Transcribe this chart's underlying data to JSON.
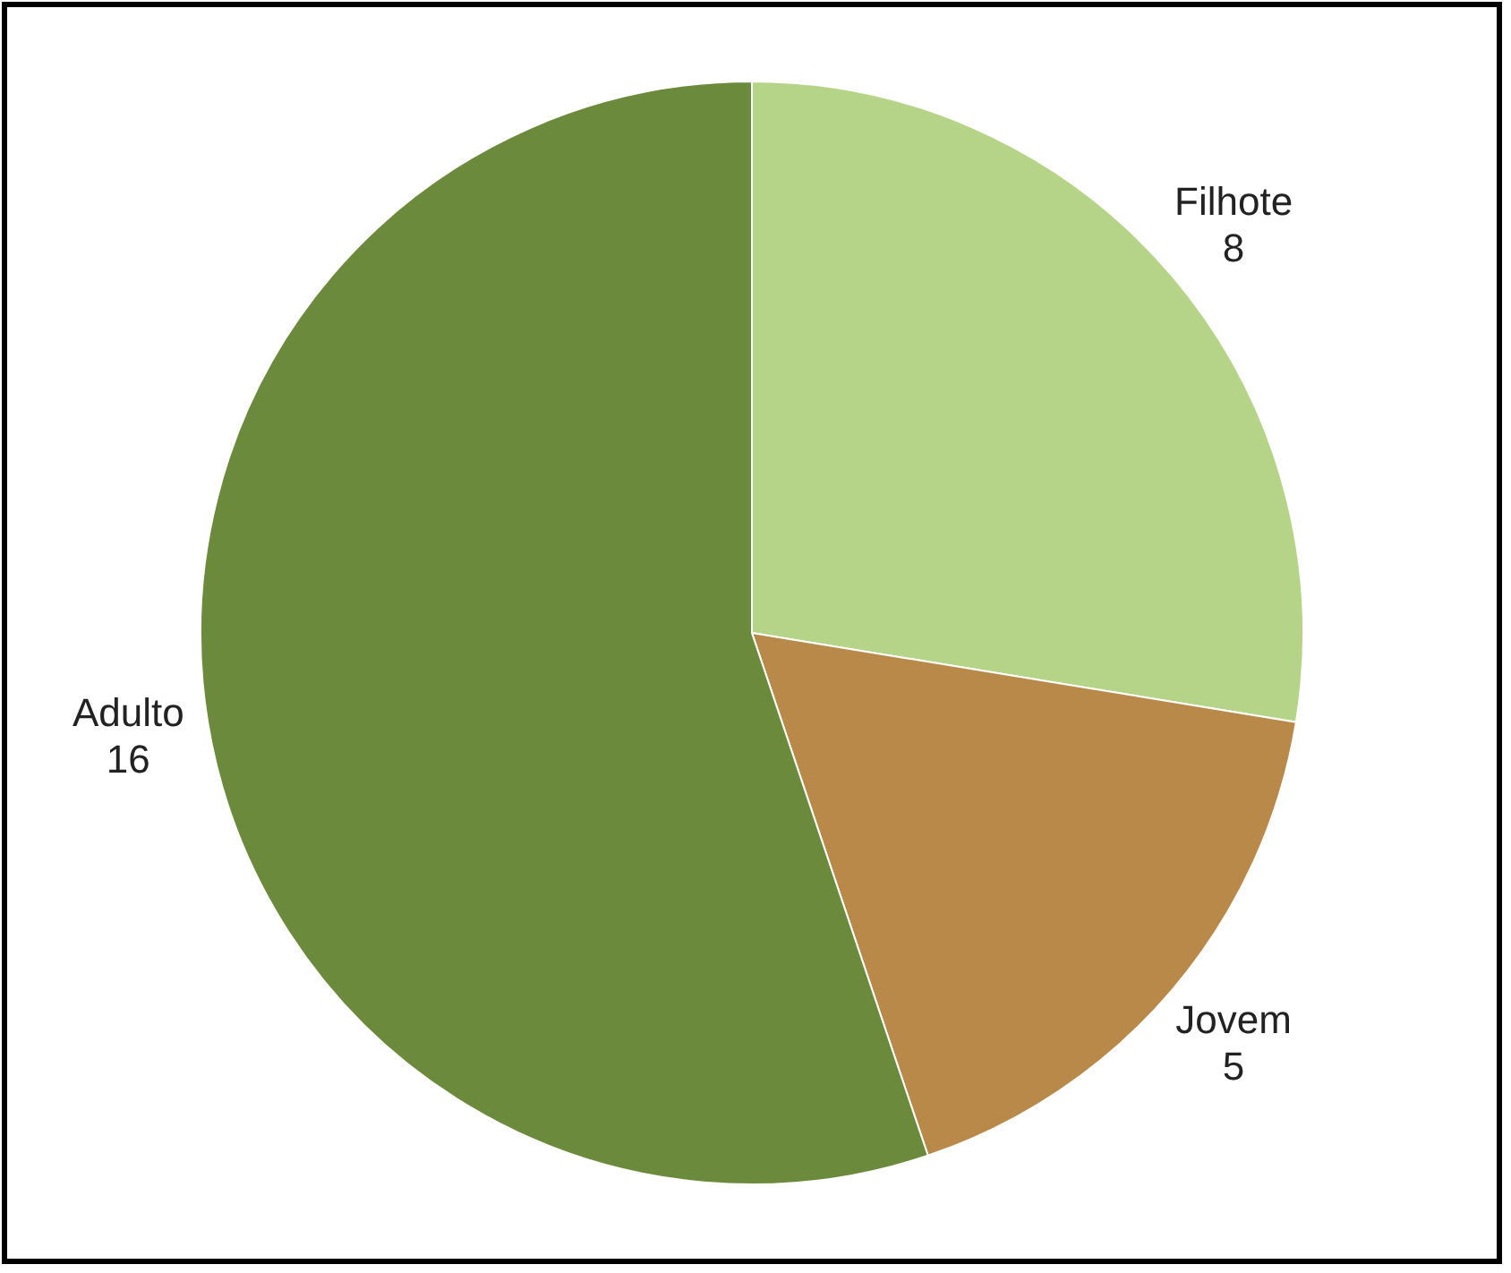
{
  "chart_data": {
    "type": "pie",
    "categories": [
      "Filhote",
      "Jovem",
      "Adulto"
    ],
    "values": [
      8,
      5,
      16
    ],
    "colors": [
      "#b5d488",
      "#b9894a",
      "#6b8a3c"
    ],
    "data_labels": true
  }
}
